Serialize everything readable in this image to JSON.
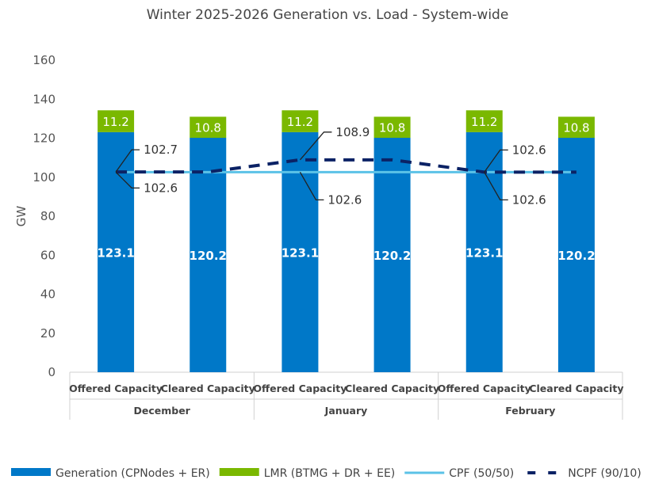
{
  "chart_data": {
    "type": "bar",
    "stacked": true,
    "title": "Winter 2025-2026 Generation vs. Load - System-wide",
    "ylabel": "GW",
    "xlabel": "",
    "ylim": [
      0,
      160
    ],
    "yticks": [
      0,
      20,
      40,
      60,
      80,
      100,
      120,
      140,
      160
    ],
    "grid": false,
    "legend_position": "bottom",
    "groups": [
      "December",
      "January",
      "February"
    ],
    "categories": [
      "Offered Capacity",
      "Cleared Capacity",
      "Offered Capacity",
      "Cleared Capacity",
      "Offered Capacity",
      "Cleared Capacity"
    ],
    "series": [
      {
        "name": "Generation (CPNodes + ER)",
        "kind": "bar",
        "color": "#0078C8",
        "values": [
          123.1,
          120.2,
          123.1,
          120.2,
          123.1,
          120.2
        ]
      },
      {
        "name": "LMR (BTMG + DR + EE)",
        "kind": "bar",
        "color": "#7AB800",
        "values": [
          11.2,
          10.8,
          11.2,
          10.8,
          11.2,
          10.8
        ]
      },
      {
        "name": "CPF (50/50)",
        "kind": "line",
        "color": "#5BC2E7",
        "values": [
          102.6,
          102.6,
          102.6,
          102.6,
          102.6,
          102.6
        ]
      },
      {
        "name": "NCPF (90/10)",
        "kind": "dashed-line",
        "color": "#0B2265",
        "values": [
          102.7,
          102.7,
          108.9,
          108.9,
          102.6,
          102.6
        ]
      }
    ],
    "annotations": [
      {
        "category_index": 0,
        "series": "NCPF (90/10)",
        "text": "102.7"
      },
      {
        "category_index": 0,
        "series": "CPF (50/50)",
        "text": "102.6"
      },
      {
        "category_index": 2,
        "series": "NCPF (90/10)",
        "text": "108.9"
      },
      {
        "category_index": 2,
        "series": "CPF (50/50)",
        "text": "102.6"
      },
      {
        "category_index": 4,
        "series": "NCPF (90/10)",
        "text": "102.6"
      },
      {
        "category_index": 4,
        "series": "CPF (50/50)",
        "text": "102.6"
      }
    ]
  }
}
